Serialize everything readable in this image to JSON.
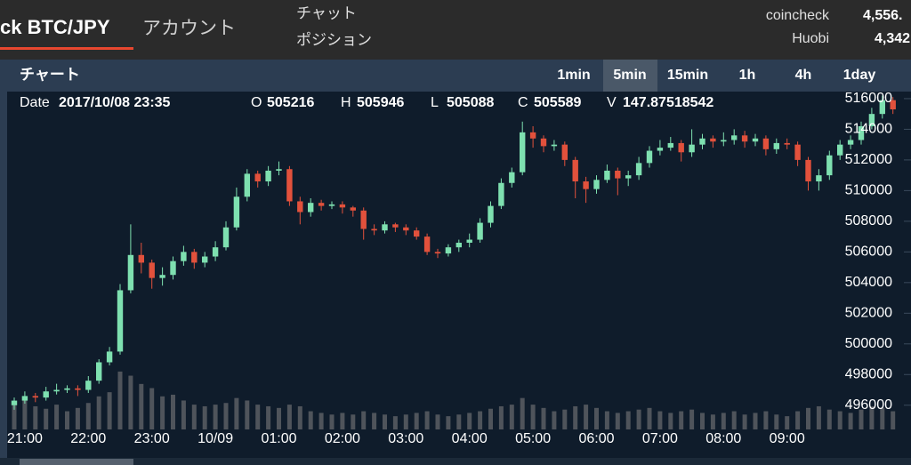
{
  "header": {
    "brand": "ck BTC/JPY",
    "nav": [
      "アカウント"
    ],
    "menu": [
      "チャット",
      "ポジション"
    ],
    "exchanges": [
      {
        "name": "coincheck",
        "price": "4,556."
      },
      {
        "name": "Huobi",
        "price": "4,342"
      }
    ]
  },
  "panel": {
    "title": "チャート",
    "timeframes": [
      "1min",
      "5min",
      "15min",
      "1h",
      "4h",
      "1day"
    ],
    "active_timeframe_index": 1
  },
  "ohlc_info": {
    "date_label": "Date",
    "date": "2017/10/08 23:35",
    "fields": [
      {
        "label": "O",
        "value": 505216
      },
      {
        "label": "H",
        "value": 505946
      },
      {
        "label": "L",
        "value": 505088
      },
      {
        "label": "C",
        "value": 505589
      },
      {
        "label": "V",
        "value": 147.87518542
      }
    ]
  },
  "chart_data": {
    "type": "candlestick",
    "categories": [
      null,
      "21:00",
      null,
      null,
      null,
      null,
      null,
      "22:00",
      null,
      null,
      null,
      null,
      null,
      "23:00",
      null,
      null,
      null,
      null,
      null,
      "10/09",
      null,
      null,
      null,
      null,
      null,
      "01:00",
      null,
      null,
      null,
      null,
      null,
      "02:00",
      null,
      null,
      null,
      null,
      null,
      "03:00",
      null,
      null,
      null,
      null,
      null,
      "04:00",
      null,
      null,
      null,
      null,
      null,
      "05:00",
      null,
      null,
      null,
      null,
      null,
      "06:00",
      null,
      null,
      null,
      null,
      null,
      "07:00",
      null,
      null,
      null,
      null,
      null,
      "08:00",
      null,
      null,
      null,
      null,
      null,
      "09:00",
      null,
      null,
      null,
      null,
      null,
      null,
      null,
      null,
      null,
      null
    ],
    "open": [
      496000,
      496300,
      496600,
      496500,
      496900,
      497000,
      497100,
      497000,
      497600,
      498800,
      499500,
      503500,
      505800,
      505300,
      504300,
      504500,
      505400,
      506000,
      505300,
      505700,
      506300,
      507600,
      509600,
      511100,
      510600,
      511300,
      511400,
      509300,
      508600,
      509200,
      509000,
      509100,
      508900,
      508700,
      507500,
      507400,
      507800,
      507600,
      507400,
      507000,
      506000,
      505900,
      506300,
      506600,
      506800,
      507900,
      509000,
      510500,
      511200,
      513800,
      513400,
      512900,
      513000,
      512000,
      510600,
      510100,
      510700,
      511300,
      510800,
      511000,
      511800,
      512600,
      512800,
      513100,
      512500,
      513000,
      513400,
      513200,
      513300,
      513600,
      513200,
      513400,
      512700,
      513100,
      513000,
      512000,
      510600,
      511000,
      512300,
      513000,
      513300,
      514200,
      515000,
      515900
    ],
    "high": [
      496500,
      496900,
      496800,
      497200,
      497400,
      497300,
      497300,
      497900,
      499000,
      499800,
      503900,
      507800,
      506600,
      505500,
      505000,
      505700,
      506400,
      506200,
      506000,
      506700,
      508000,
      510200,
      511400,
      511300,
      511600,
      511900,
      511600,
      509600,
      509500,
      509400,
      509300,
      509300,
      509000,
      508900,
      507800,
      508000,
      507900,
      507800,
      507600,
      507200,
      506200,
      506500,
      506800,
      507200,
      508200,
      509300,
      510800,
      511500,
      514500,
      514200,
      513600,
      513300,
      513200,
      512200,
      510900,
      511000,
      511700,
      511500,
      511300,
      512200,
      512900,
      513300,
      513500,
      513300,
      514000,
      513700,
      513600,
      513800,
      514000,
      513900,
      513700,
      513600,
      513400,
      513400,
      513200,
      512200,
      511400,
      512600,
      513300,
      513600,
      514500,
      515400,
      516200,
      516100
    ],
    "low": [
      495700,
      496100,
      496200,
      496300,
      496700,
      496800,
      496600,
      496800,
      497400,
      498600,
      499300,
      503300,
      504600,
      503600,
      503800,
      504200,
      505100,
      504900,
      505000,
      505400,
      506100,
      507400,
      509300,
      510200,
      510300,
      511000,
      509000,
      507800,
      508300,
      508700,
      508800,
      508500,
      508300,
      506800,
      507100,
      507200,
      507300,
      507100,
      506800,
      505800,
      505600,
      505700,
      506000,
      506300,
      506600,
      507600,
      508800,
      510200,
      511000,
      512800,
      512500,
      512600,
      511600,
      509500,
      509200,
      509800,
      510500,
      509700,
      510300,
      510700,
      511500,
      512300,
      512600,
      511900,
      512200,
      512700,
      512800,
      512900,
      513000,
      512800,
      512900,
      512300,
      512400,
      512700,
      511600,
      510000,
      510000,
      510700,
      512000,
      512700,
      513000,
      514000,
      514700,
      515000
    ],
    "close": [
      496300,
      496600,
      496500,
      496900,
      497000,
      497100,
      497000,
      497600,
      498800,
      499500,
      503500,
      505800,
      505300,
      504300,
      504500,
      505400,
      506000,
      505300,
      505700,
      506300,
      507600,
      509600,
      511100,
      510600,
      511300,
      511400,
      509300,
      508600,
      509200,
      509000,
      509100,
      508900,
      508700,
      507500,
      507400,
      507800,
      507600,
      507400,
      507000,
      506000,
      505900,
      506300,
      506600,
      506800,
      507900,
      509000,
      510500,
      511200,
      513800,
      513400,
      512900,
      513000,
      512000,
      510600,
      510100,
      510700,
      511300,
      510800,
      511000,
      511800,
      512600,
      512800,
      513100,
      512500,
      513000,
      513400,
      513200,
      513300,
      513600,
      513200,
      513400,
      512700,
      513100,
      513000,
      512000,
      510600,
      511000,
      512300,
      513000,
      513300,
      514200,
      515000,
      515900,
      515300
    ],
    "volume": [
      30,
      35,
      28,
      25,
      30,
      22,
      26,
      32,
      40,
      45,
      70,
      65,
      55,
      50,
      40,
      42,
      35,
      30,
      28,
      30,
      32,
      38,
      35,
      30,
      28,
      26,
      30,
      28,
      22,
      20,
      18,
      20,
      18,
      22,
      20,
      18,
      16,
      18,
      20,
      22,
      18,
      16,
      18,
      20,
      22,
      25,
      28,
      30,
      38,
      30,
      26,
      22,
      24,
      28,
      30,
      26,
      22,
      20,
      22,
      24,
      26,
      22,
      20,
      22,
      24,
      20,
      18,
      20,
      22,
      18,
      20,
      22,
      18,
      16,
      22,
      26,
      28,
      24,
      22,
      20,
      24,
      28,
      26,
      22
    ],
    "up_color": "#7ee0b0",
    "down_color": "#e2513c",
    "volume_color": "#5a5e64",
    "ylim": [
      494420,
      516460
    ],
    "yticks": [
      496000,
      498000,
      500000,
      502000,
      504000,
      506000,
      508000,
      510000,
      512000,
      514000,
      516000
    ],
    "y2lim": [
      0,
      100
    ]
  }
}
